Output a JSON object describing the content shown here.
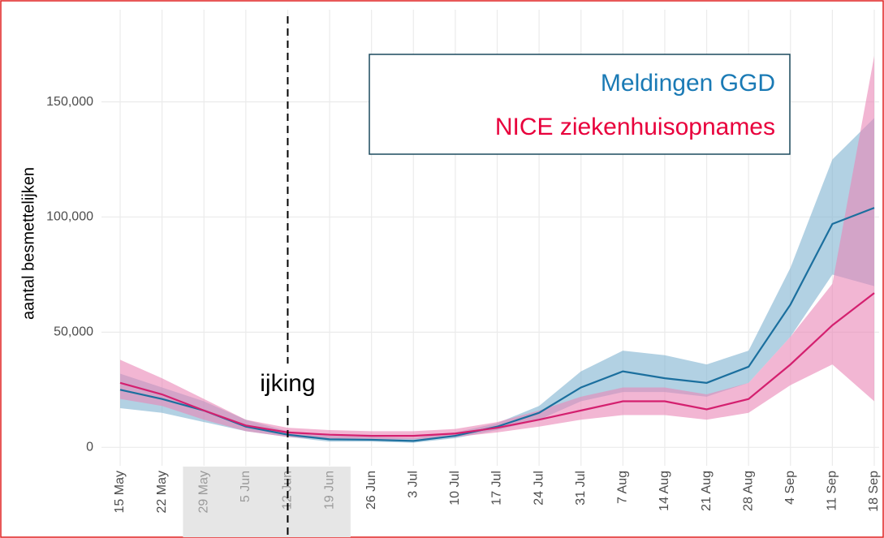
{
  "chart_data": {
    "type": "band-line",
    "ylabel": "aantal besmettelijken",
    "categories": [
      "15 May",
      "22 May",
      "29 May",
      "5 Jun",
      "12 Jun",
      "19 Jun",
      "26 Jun",
      "3 Jul",
      "10 Jul",
      "17 Jul",
      "24 Jul",
      "31 Jul",
      "7 Aug",
      "14 Aug",
      "21 Aug",
      "28 Aug",
      "4 Sep",
      "11 Sep",
      "18 Sep"
    ],
    "shaded_range": [
      "29 May",
      "19 Jun"
    ],
    "vline": "12 Jun",
    "annotation": "ijking",
    "series": [
      {
        "name": "Meldingen GGD",
        "color": "#1b6f9e",
        "label_color": "#1a7ab5",
        "band_color": "#7fb3d0",
        "values": [
          25000,
          21000,
          16000,
          9000,
          5500,
          3500,
          3300,
          2800,
          5000,
          9000,
          15000,
          26000,
          33000,
          30000,
          28000,
          35000,
          62000,
          97000,
          104000
        ],
        "lower": [
          17000,
          15000,
          11000,
          7000,
          4500,
          2500,
          2500,
          2000,
          4000,
          7500,
          12000,
          20000,
          24000,
          24000,
          22000,
          28000,
          48000,
          75000,
          70000
        ],
        "upper": [
          32000,
          26000,
          20000,
          12000,
          7000,
          5000,
          4500,
          4000,
          6500,
          10500,
          18000,
          33000,
          42000,
          40000,
          36000,
          42000,
          78000,
          125000,
          143000
        ]
      },
      {
        "name": "NICE ziekenhuisopnames",
        "color": "#d4206f",
        "label_color": "#e8003c",
        "band_color": "#e986b6",
        "values": [
          28000,
          23000,
          16000,
          9500,
          6500,
          5500,
          5000,
          5000,
          6000,
          8500,
          12000,
          16000,
          20000,
          20000,
          16500,
          21000,
          36000,
          53000,
          67000
        ],
        "lower": [
          21000,
          18000,
          12000,
          7000,
          4500,
          3500,
          3500,
          3500,
          4500,
          6500,
          9000,
          12000,
          14000,
          14000,
          12000,
          15000,
          27000,
          36000,
          20000
        ],
        "upper": [
          38000,
          30000,
          21000,
          12000,
          8500,
          7500,
          7000,
          7000,
          8000,
          11000,
          16000,
          22000,
          26000,
          26000,
          23000,
          28000,
          48000,
          71000,
          170000
        ]
      }
    ],
    "ylim": [
      -8000,
      190000
    ],
    "yticks": [
      0,
      {
        "value": 50000,
        "label": "50,000"
      },
      {
        "value": 100000,
        "label": "100,000"
      },
      {
        "value": 150000,
        "label": "150,000"
      }
    ],
    "grid": true
  }
}
